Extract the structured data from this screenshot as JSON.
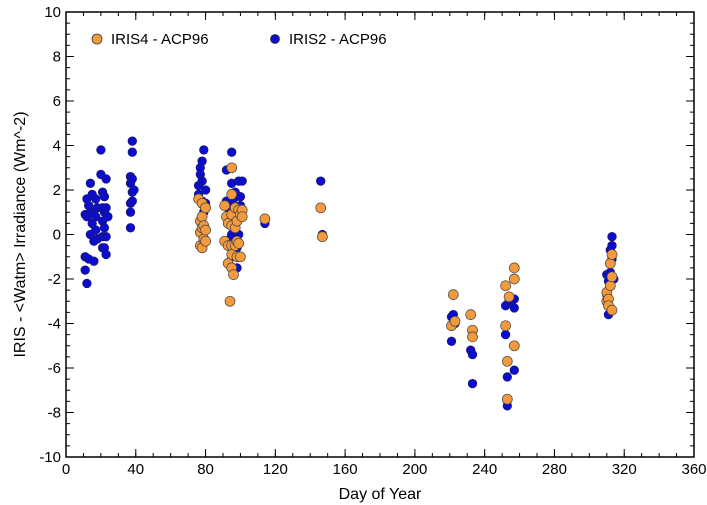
{
  "chart_data": {
    "type": "scatter",
    "xlabel": "Day of Year",
    "ylabel": "IRIS - <Watm> Irradiance (Wm^-2)",
    "xlim": [
      0,
      360
    ],
    "ylim": [
      -10,
      10
    ],
    "x_ticks": [
      0,
      40,
      80,
      120,
      160,
      200,
      240,
      280,
      320,
      360
    ],
    "y_ticks": [
      -10,
      -8,
      -6,
      -4,
      -2,
      0,
      2,
      4,
      6,
      8,
      10
    ],
    "x_ticks_minor_step": 10,
    "y_ticks_minor_step": 0.5,
    "grid": false,
    "legend_position": "top-left",
    "series": [
      {
        "name": "IRIS4 - ACP96",
        "color": "#f39a3e",
        "points": [
          [
            76,
            1.6
          ],
          [
            77,
            0.6
          ],
          [
            77,
            0.1
          ],
          [
            77,
            -0.5
          ],
          [
            78,
            1.4
          ],
          [
            78,
            0.8
          ],
          [
            78,
            0.3
          ],
          [
            78,
            -0.6
          ],
          [
            79,
            0.4
          ],
          [
            79,
            -0.2
          ],
          [
            80,
            1.2
          ],
          [
            80,
            0.2
          ],
          [
            80,
            -0.3
          ],
          [
            91,
            1.3
          ],
          [
            91,
            -0.3
          ],
          [
            92,
            0.8
          ],
          [
            93,
            0.5
          ],
          [
            93,
            -0.5
          ],
          [
            93,
            -1.3
          ],
          [
            94,
            -3.0
          ],
          [
            95,
            3.0
          ],
          [
            95,
            1.8
          ],
          [
            95,
            0.9
          ],
          [
            95,
            0.4
          ],
          [
            95,
            -0.5
          ],
          [
            95,
            -0.9
          ],
          [
            95,
            -1.5
          ],
          [
            96,
            -1.8
          ],
          [
            97,
            1.2
          ],
          [
            97,
            0.3
          ],
          [
            97,
            -0.5
          ],
          [
            98,
            0.6
          ],
          [
            98,
            -0.3
          ],
          [
            98,
            -1.0
          ],
          [
            99,
            1.1
          ],
          [
            99,
            -0.4
          ],
          [
            100,
            0.9
          ],
          [
            100,
            -1.0
          ],
          [
            101,
            1.1
          ],
          [
            101,
            0.8
          ],
          [
            114,
            0.7
          ],
          [
            146,
            1.2
          ],
          [
            147,
            -0.1
          ],
          [
            221,
            -4.1
          ],
          [
            222,
            -2.7
          ],
          [
            223,
            -3.9
          ],
          [
            232,
            -3.6
          ],
          [
            233,
            -4.3
          ],
          [
            233,
            -4.6
          ],
          [
            252,
            -2.3
          ],
          [
            252,
            -4.1
          ],
          [
            253,
            -5.7
          ],
          [
            253,
            -7.4
          ],
          [
            254,
            -2.8
          ],
          [
            257,
            -1.5
          ],
          [
            257,
            -2.0
          ],
          [
            257,
            -5.0
          ],
          [
            310,
            -2.6
          ],
          [
            310,
            -3.0
          ],
          [
            311,
            -2.9
          ],
          [
            311,
            -3.2
          ],
          [
            312,
            -2.3
          ],
          [
            312,
            -1.3
          ],
          [
            313,
            -0.9
          ],
          [
            313,
            -1.9
          ],
          [
            313,
            -3.4
          ]
        ]
      },
      {
        "name": "IRIS2 - ACP96",
        "color": "#0c0cd0",
        "points": [
          [
            11,
            0.9
          ],
          [
            11,
            -1.0
          ],
          [
            11,
            -1.6
          ],
          [
            12,
            -2.2
          ],
          [
            12,
            1.6
          ],
          [
            12,
            0.8
          ],
          [
            13,
            1.3
          ],
          [
            13,
            -1.1
          ],
          [
            14,
            2.3
          ],
          [
            14,
            1.0
          ],
          [
            14,
            0.0
          ],
          [
            15,
            1.8
          ],
          [
            15,
            0.5
          ],
          [
            16,
            0.9
          ],
          [
            16,
            -0.3
          ],
          [
            16,
            -1.2
          ],
          [
            17,
            1.6
          ],
          [
            17,
            0.8
          ],
          [
            17,
            0.2
          ],
          [
            18,
            -0.2
          ],
          [
            18,
            1.2
          ],
          [
            20,
            3.8
          ],
          [
            20,
            2.7
          ],
          [
            21,
            1.9
          ],
          [
            21,
            1.2
          ],
          [
            21,
            0.6
          ],
          [
            21,
            -0.1
          ],
          [
            21,
            -0.6
          ],
          [
            22,
            1.7
          ],
          [
            22,
            1.0
          ],
          [
            22,
            0.3
          ],
          [
            22,
            -0.6
          ],
          [
            23,
            2.5
          ],
          [
            23,
            1.2
          ],
          [
            23,
            -0.1
          ],
          [
            23,
            -0.9
          ],
          [
            24,
            0.8
          ],
          [
            37,
            2.6
          ],
          [
            37,
            2.3
          ],
          [
            37,
            1.4
          ],
          [
            37,
            1.0
          ],
          [
            37,
            0.3
          ],
          [
            38,
            4.2
          ],
          [
            38,
            3.7
          ],
          [
            38,
            2.5
          ],
          [
            38,
            1.9
          ],
          [
            38,
            1.5
          ],
          [
            39,
            2.0
          ],
          [
            76,
            1.8
          ],
          [
            76,
            2.2
          ],
          [
            77,
            2.7
          ],
          [
            77,
            3.0
          ],
          [
            78,
            3.3
          ],
          [
            78,
            2.4
          ],
          [
            78,
            1.5
          ],
          [
            79,
            3.8
          ],
          [
            79,
            1.0
          ],
          [
            80,
            2.0
          ],
          [
            80,
            1.4
          ],
          [
            92,
            2.9
          ],
          [
            92,
            1.5
          ],
          [
            93,
            1.2
          ],
          [
            93,
            0.9
          ],
          [
            94,
            -0.2
          ],
          [
            95,
            3.7
          ],
          [
            95,
            2.3
          ],
          [
            95,
            0.0
          ],
          [
            95,
            -1.0
          ],
          [
            96,
            1.6
          ],
          [
            96,
            1.3
          ],
          [
            97,
            1.9
          ],
          [
            97,
            0.7
          ],
          [
            98,
            -0.6
          ],
          [
            98,
            -1.5
          ],
          [
            99,
            2.4
          ],
          [
            99,
            0.0
          ],
          [
            100,
            1.7
          ],
          [
            100,
            1.3
          ],
          [
            101,
            2.4
          ],
          [
            114,
            0.5
          ],
          [
            146,
            2.4
          ],
          [
            147,
            0.0
          ],
          [
            221,
            -3.7
          ],
          [
            221,
            -4.8
          ],
          [
            222,
            -3.6
          ],
          [
            223,
            -4.0
          ],
          [
            232,
            -5.2
          ],
          [
            233,
            -6.7
          ],
          [
            233,
            -5.4
          ],
          [
            252,
            -3.2
          ],
          [
            252,
            -4.5
          ],
          [
            253,
            -6.4
          ],
          [
            253,
            -7.7
          ],
          [
            254,
            -3.0
          ],
          [
            257,
            -2.9
          ],
          [
            257,
            -3.3
          ],
          [
            257,
            -6.1
          ],
          [
            310,
            -1.8
          ],
          [
            310,
            -2.7
          ],
          [
            311,
            -3.6
          ],
          [
            311,
            -2.1
          ],
          [
            312,
            -0.7
          ],
          [
            312,
            -1.7
          ],
          [
            313,
            -0.1
          ],
          [
            313,
            -0.5
          ],
          [
            313,
            -1.1
          ],
          [
            314,
            -2.0
          ]
        ]
      }
    ]
  }
}
